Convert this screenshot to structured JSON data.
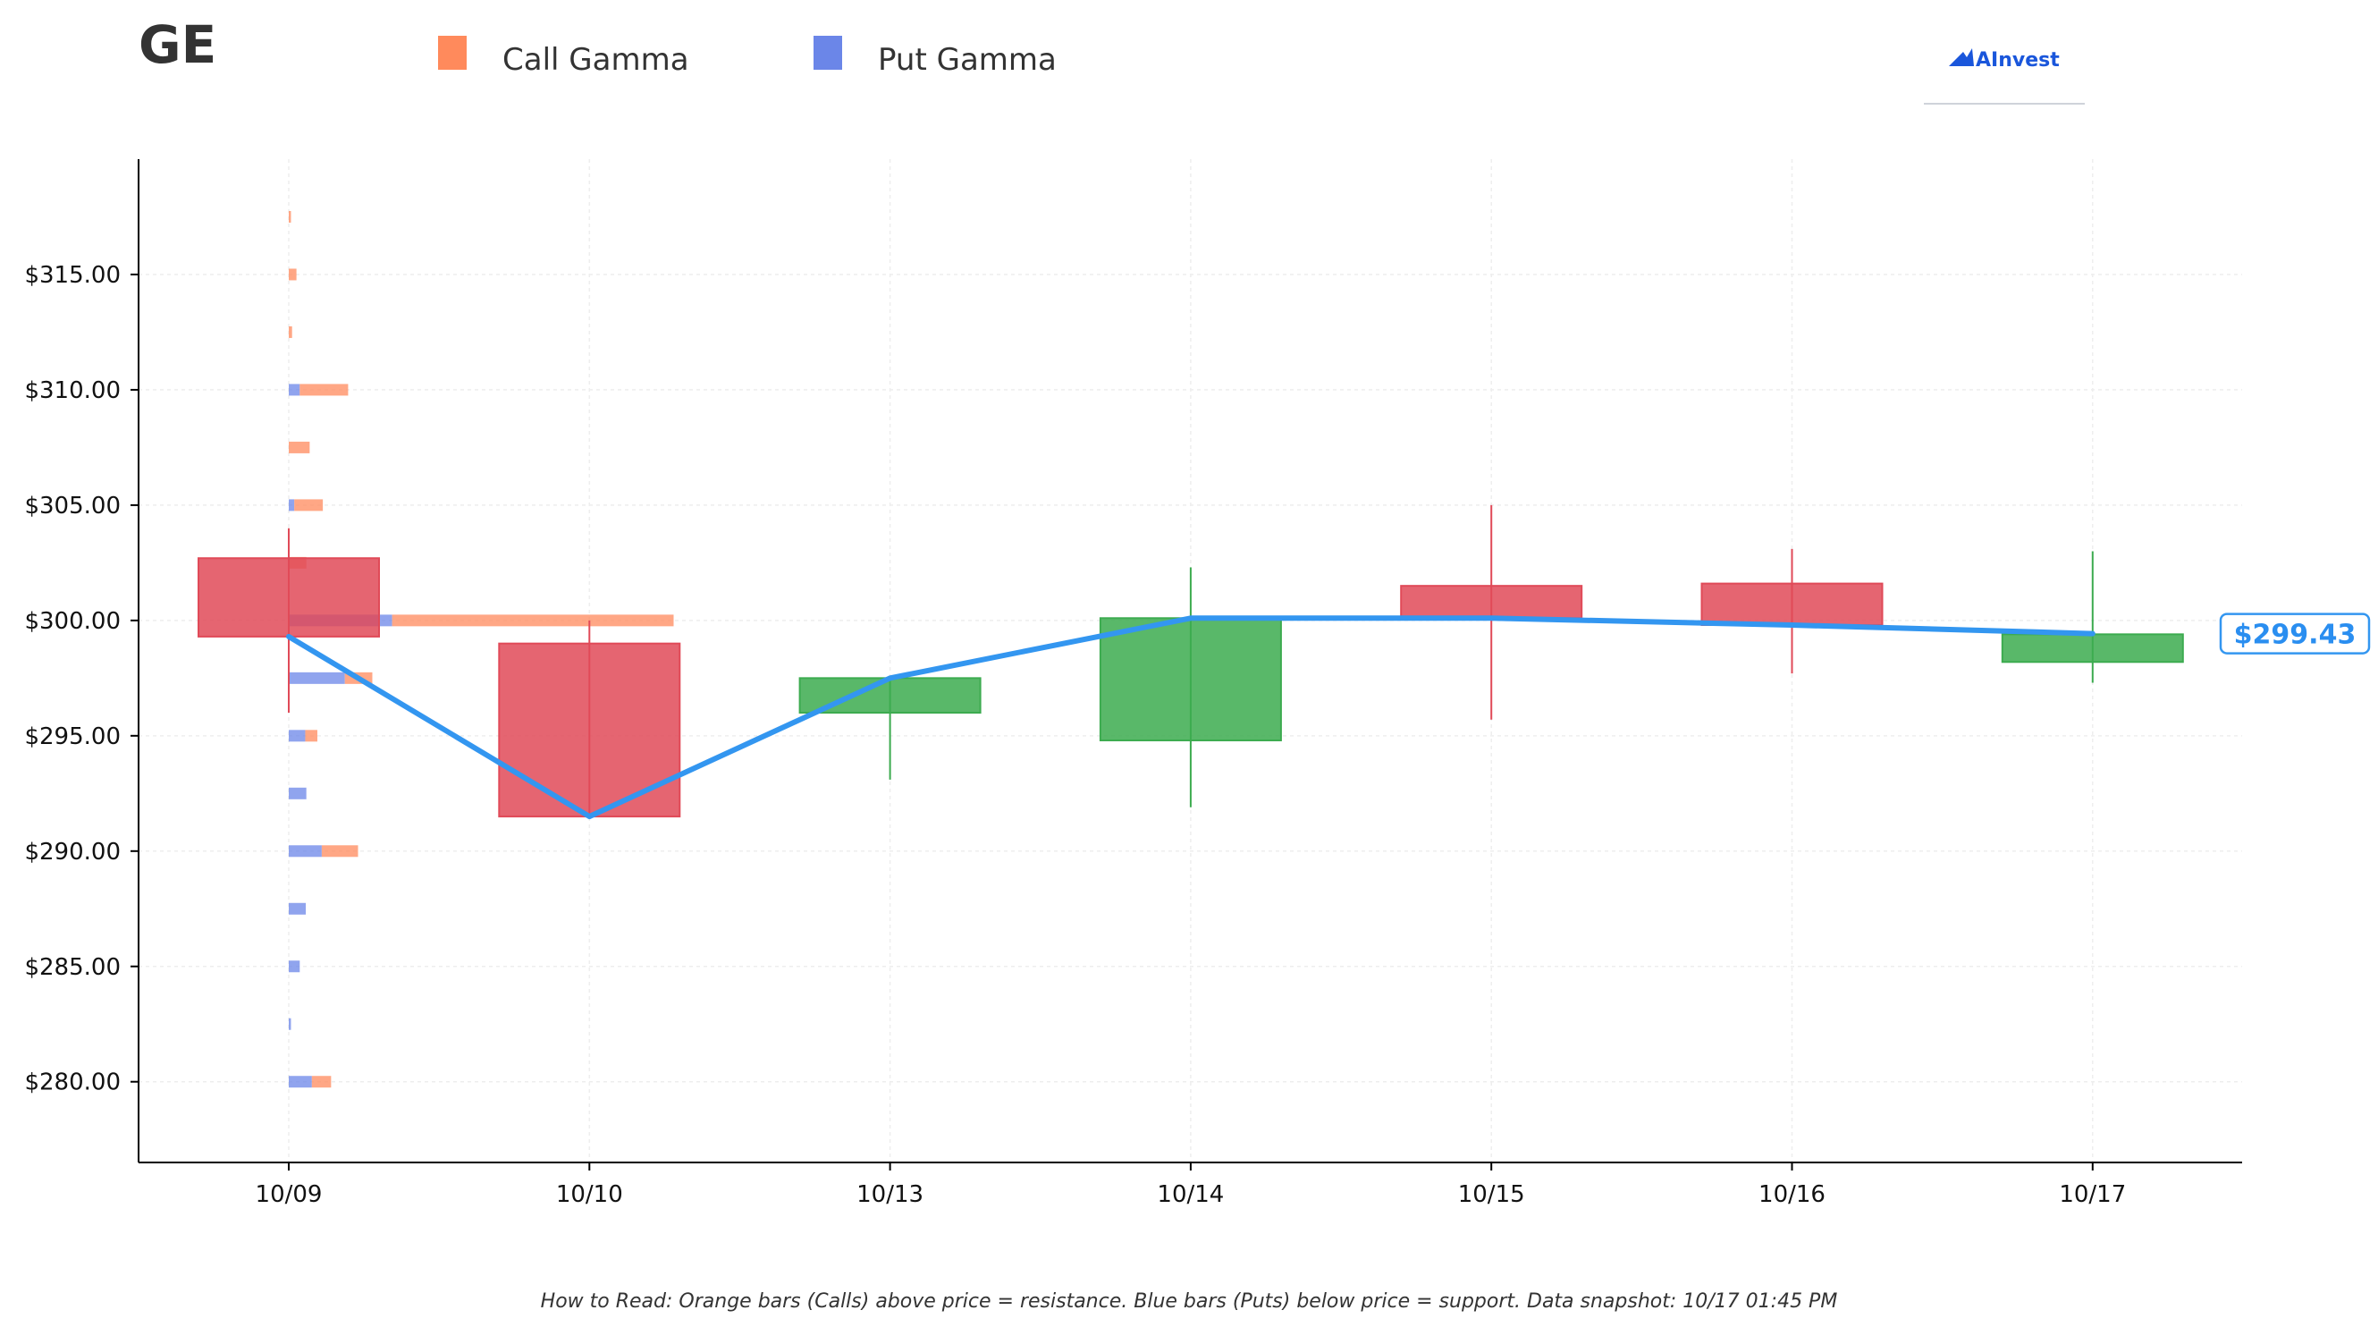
{
  "title": "GE",
  "legend": [
    {
      "label": "Call Gamma",
      "color": "#ff8a5c"
    },
    {
      "label": "Put Gamma",
      "color": "#6b86e8"
    }
  ],
  "logo_text": "AInvest",
  "footnote": "How to Read: Orange bars (Calls) above price = resistance. Blue bars (Puts) below price = support. Data snapshot: 10/17 01:45 PM",
  "colors": {
    "bullish": "#3cab4f",
    "bearish": "#e04a58",
    "price_line": "#3396f0",
    "call": "#ff8a5c",
    "put": "#6b86e8",
    "axis": "#000000"
  },
  "chart_data": {
    "type": "candlestick",
    "ylim": [
      276.5,
      320
    ],
    "y_ticks": [
      280,
      285,
      290,
      295,
      300,
      305,
      310,
      315
    ],
    "y_tick_labels": [
      "$280.00",
      "$285.00",
      "$290.00",
      "$295.00",
      "$300.00",
      "$305.00",
      "$310.00",
      "$315.00"
    ],
    "categories": [
      "10/09",
      "10/10",
      "10/13",
      "10/14",
      "10/15",
      "10/16",
      "10/17"
    ],
    "candles": [
      {
        "date": "10/09",
        "open": 302.7,
        "close": 299.3,
        "high": 304.0,
        "low": 296.0
      },
      {
        "date": "10/10",
        "open": 299.0,
        "close": 291.5,
        "high": 300.0,
        "low": 291.5
      },
      {
        "date": "10/13",
        "open": 296.0,
        "close": 297.5,
        "high": 297.5,
        "low": 293.1
      },
      {
        "date": "10/14",
        "open": 294.8,
        "close": 300.1,
        "high": 302.3,
        "low": 291.9
      },
      {
        "date": "10/15",
        "open": 301.5,
        "close": 300.1,
        "high": 305.0,
        "low": 295.7
      },
      {
        "date": "10/16",
        "open": 301.6,
        "close": 299.8,
        "high": 303.1,
        "low": 297.7
      },
      {
        "date": "10/17",
        "open": 298.2,
        "close": 299.4,
        "high": 303.0,
        "low": 297.3
      }
    ],
    "price_line": [
      299.3,
      291.5,
      297.5,
      300.1,
      300.1,
      299.8,
      299.43
    ],
    "last_price": 299.43,
    "last_price_label": "$299.43",
    "gamma_exposure": [
      {
        "strike": 317.5,
        "call": 0.2,
        "put": 0
      },
      {
        "strike": 315.0,
        "call": 0.7,
        "put": 0
      },
      {
        "strike": 312.5,
        "call": 0.3,
        "put": 0
      },
      {
        "strike": 310.0,
        "call": 4.4,
        "put": 1.0
      },
      {
        "strike": 307.5,
        "call": 1.9,
        "put": 0
      },
      {
        "strike": 305.0,
        "call": 2.6,
        "put": 0.5
      },
      {
        "strike": 302.5,
        "call": 1.6,
        "put": 0
      },
      {
        "strike": 300.0,
        "call": 25.6,
        "put": 9.4
      },
      {
        "strike": 297.5,
        "call": 2.5,
        "put": 5.1
      },
      {
        "strike": 295.0,
        "call": 1.1,
        "put": 1.5
      },
      {
        "strike": 292.5,
        "call": 0,
        "put": 1.6
      },
      {
        "strike": 290.0,
        "call": 3.3,
        "put": 3.0
      },
      {
        "strike": 287.5,
        "call": 0,
        "put": 1.55
      },
      {
        "strike": 285.0,
        "call": 0,
        "put": 1.0
      },
      {
        "strike": 282.5,
        "call": 0,
        "put": 0.2
      },
      {
        "strike": 280.0,
        "call": 1.75,
        "put": 2.1
      }
    ]
  }
}
